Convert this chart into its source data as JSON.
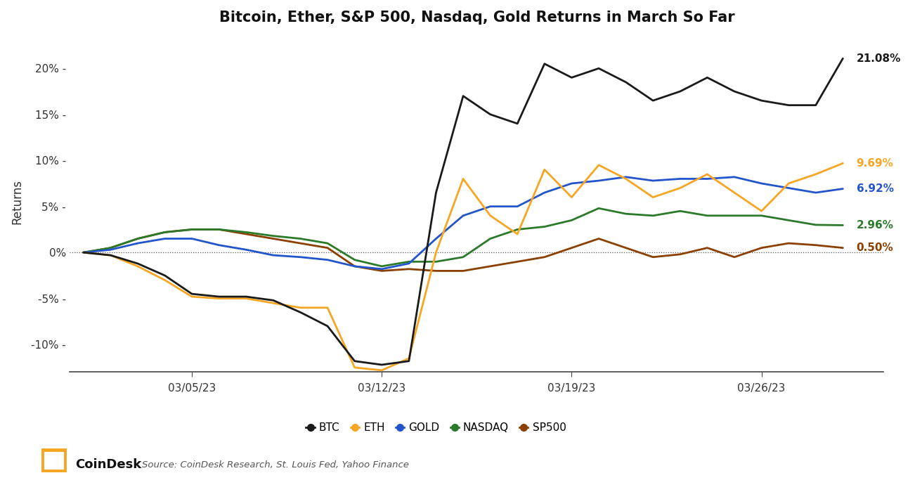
{
  "title": "Bitcoin, Ether, S&P 500, Nasdaq, Gold Returns in March So Far",
  "ylabel": "Returns",
  "source_text": "Source: CoinDesk Research, St. Louis Fed, Yahoo Finance",
  "background_color": "#ffffff",
  "ylim": [
    -13,
    24
  ],
  "xlim_min": -0.5,
  "xlim_max": 29.5,
  "xtick_labels": [
    "03/05/23",
    "03/12/23",
    "03/19/23",
    "03/26/23"
  ],
  "xtick_positions": [
    4,
    11,
    18,
    25
  ],
  "ytick_labels": [
    "-10%-",
    "-5%-",
    "0%",
    "5%-",
    "10%-",
    "15%-",
    "20%-"
  ],
  "ytick_labels_clean": [
    "-10%",
    "-5%",
    "0%",
    "5%",
    "10%",
    "15%",
    "20%"
  ],
  "ytick_values": [
    -10,
    -5,
    0,
    5,
    10,
    15,
    20
  ],
  "series": {
    "BTC": {
      "color": "#1a1a1a",
      "final_label": "21.08%",
      "label_color": "#1a1a1a",
      "data_x": [
        0,
        1,
        2,
        3,
        4,
        5,
        6,
        7,
        8,
        9,
        10,
        11,
        12,
        13,
        14,
        15,
        16,
        17,
        18,
        19,
        20,
        21,
        22,
        23,
        24,
        25,
        26,
        27,
        28
      ],
      "data_y": [
        0,
        -0.3,
        -1.2,
        -2.5,
        -4.5,
        -4.8,
        -4.8,
        -5.2,
        -6.5,
        -8.0,
        -11.8,
        -12.2,
        -11.8,
        6.5,
        17.0,
        15.0,
        14.0,
        20.5,
        19.0,
        20.0,
        18.5,
        16.5,
        17.5,
        19.0,
        17.5,
        16.5,
        16.0,
        16.0,
        21.08
      ]
    },
    "ETH": {
      "color": "#f5a623",
      "final_label": "9.69%",
      "label_color": "#f5a623",
      "data_x": [
        0,
        1,
        2,
        3,
        4,
        5,
        6,
        7,
        8,
        9,
        10,
        11,
        12,
        13,
        14,
        15,
        16,
        17,
        18,
        19,
        20,
        21,
        22,
        23,
        24,
        25,
        26,
        27,
        28
      ],
      "data_y": [
        0,
        -0.3,
        -1.5,
        -3.0,
        -4.8,
        -5.0,
        -5.0,
        -5.5,
        -6.0,
        -6.0,
        -12.5,
        -12.8,
        -11.5,
        0.0,
        8.0,
        4.0,
        2.0,
        9.0,
        6.0,
        9.5,
        8.0,
        6.0,
        7.0,
        8.5,
        6.5,
        4.5,
        7.5,
        8.5,
        9.69
      ]
    },
    "GOLD": {
      "color": "#2255cc",
      "final_label": "6.92%",
      "label_color": "#2255cc",
      "data_x": [
        0,
        1,
        2,
        3,
        4,
        5,
        6,
        7,
        8,
        9,
        10,
        11,
        12,
        13,
        14,
        15,
        16,
        17,
        18,
        19,
        20,
        21,
        22,
        23,
        24,
        25,
        26,
        27,
        28
      ],
      "data_y": [
        0,
        0.3,
        1.0,
        1.5,
        1.5,
        0.8,
        0.3,
        -0.3,
        -0.5,
        -0.8,
        -1.5,
        -1.8,
        -1.2,
        1.5,
        4.0,
        5.0,
        5.0,
        6.5,
        7.5,
        7.8,
        8.2,
        7.8,
        8.0,
        8.0,
        8.2,
        7.5,
        7.0,
        6.5,
        6.92
      ]
    },
    "NASDAQ": {
      "color": "#2a7a2a",
      "final_label": "2.96%",
      "label_color": "#2a7a2a",
      "data_x": [
        0,
        1,
        2,
        3,
        4,
        5,
        6,
        7,
        8,
        9,
        10,
        11,
        12,
        13,
        14,
        15,
        16,
        17,
        18,
        19,
        20,
        21,
        22,
        23,
        24,
        25,
        26,
        27,
        28
      ],
      "data_y": [
        0,
        0.5,
        1.5,
        2.2,
        2.5,
        2.5,
        2.2,
        1.8,
        1.5,
        1.0,
        -0.8,
        -1.5,
        -1.0,
        -1.0,
        -0.5,
        1.5,
        2.5,
        2.8,
        3.5,
        4.8,
        4.2,
        4.0,
        4.5,
        4.0,
        4.0,
        4.0,
        3.5,
        3.0,
        2.96
      ]
    },
    "SP500": {
      "color": "#8B4000",
      "final_label": "0.50%",
      "label_color": "#8B4000",
      "data_x": [
        0,
        1,
        2,
        3,
        4,
        5,
        6,
        7,
        8,
        9,
        10,
        11,
        12,
        13,
        14,
        15,
        16,
        17,
        18,
        19,
        20,
        21,
        22,
        23,
        24,
        25,
        26,
        27,
        28
      ],
      "data_y": [
        0,
        0.5,
        1.5,
        2.2,
        2.5,
        2.5,
        2.0,
        1.5,
        1.0,
        0.5,
        -1.5,
        -2.0,
        -1.8,
        -2.0,
        -2.0,
        -1.5,
        -1.0,
        -0.5,
        0.5,
        1.5,
        0.5,
        -0.5,
        -0.2,
        0.5,
        -0.5,
        0.5,
        1.0,
        0.8,
        0.5
      ]
    }
  },
  "legend_order": [
    "BTC",
    "ETH",
    "GOLD",
    "NASDAQ",
    "SP500"
  ],
  "legend_colors": {
    "BTC": "#1a1a1a",
    "ETH": "#f5a623",
    "GOLD": "#2255cc",
    "NASDAQ": "#2a7a2a",
    "SP500": "#8B4000"
  }
}
